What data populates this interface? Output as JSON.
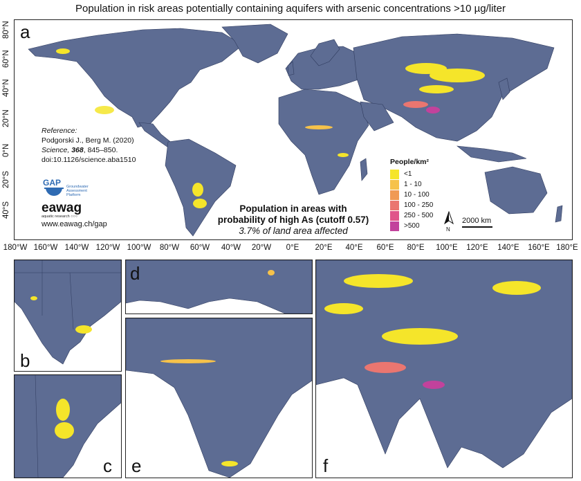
{
  "title": "Population in risk areas potentially containing aquifers with arsenic concentrations >10 µg/liter",
  "panels": {
    "a": "a",
    "b": "b",
    "c": "c",
    "d": "d",
    "e": "e",
    "f": "f"
  },
  "lat_ticks": [
    "80°N",
    "60°N",
    "40°N",
    "20°N",
    "0°N",
    "20°S",
    "40°S"
  ],
  "lon_ticks": [
    "180°W",
    "160°W",
    "140°W",
    "120°W",
    "100°W",
    "80°W",
    "60°W",
    "40°W",
    "20°W",
    "0°E",
    "20°E",
    "40°E",
    "60°E",
    "80°E",
    "100°E",
    "120°E",
    "140°E",
    "160°E",
    "180°E"
  ],
  "reference": {
    "heading": "Reference:",
    "authors": "Podgorski J., Berg M. (2020)",
    "journal": "Science,",
    "volume": "368",
    "pages": ", 845–850.",
    "doi": "doi:10.1126/science.aba1510"
  },
  "gap_logo": {
    "letters": "GAP",
    "l1": "Groundwater",
    "l2": "Assessment",
    "l3": "Platform"
  },
  "eawag": {
    "name": "eawag",
    "sub": "aquatic research ○○○"
  },
  "website": "www.eawag.ch/gap",
  "center_text": {
    "line1": "Population in areas with",
    "line2": "probability of high As (cutoff 0.57)",
    "line3": "3.7% of land area affected"
  },
  "legend": {
    "title": "People/km²",
    "items": [
      {
        "label": "<1",
        "color": "#f5e52a"
      },
      {
        "label": "1 - 10",
        "color": "#f6c24a"
      },
      {
        "label": "10 - 100",
        "color": "#f09a55"
      },
      {
        "label": "100 - 250",
        "color": "#ea7670"
      },
      {
        "label": "250 - 500",
        "color": "#e0558a"
      },
      {
        "label": ">500",
        "color": "#c2429c"
      }
    ]
  },
  "scale_label": "2000 km",
  "north_label": "N",
  "colors": {
    "land": "#5d6c93",
    "border": "#2f3b5e",
    "ocean": "#ffffff"
  }
}
